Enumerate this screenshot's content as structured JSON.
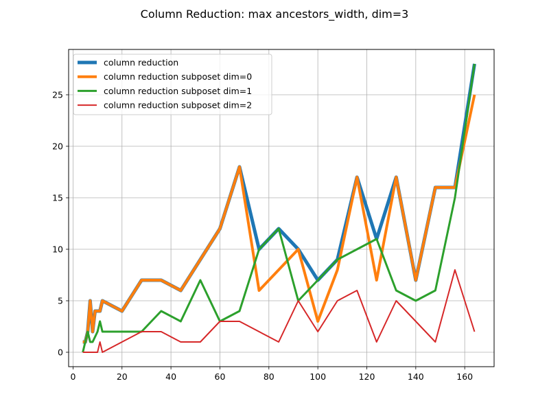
{
  "chart_data": {
    "type": "line",
    "title": "Column Reduction: max ancestors_width, dim=3",
    "xlabel": "",
    "ylabel": "",
    "xlim": [
      -1.8,
      172
    ],
    "ylim": [
      -1.4,
      29.4
    ],
    "xticks": [
      0,
      20,
      40,
      60,
      80,
      100,
      120,
      140,
      160
    ],
    "yticks": [
      0,
      5,
      10,
      15,
      20,
      25
    ],
    "grid": true,
    "legend_position": "top-left",
    "series": [
      {
        "name": "column reduction",
        "color": "#1f77b4",
        "width": 5,
        "x": [
          4,
          5,
          6,
          7,
          8,
          9,
          10,
          11,
          12,
          20,
          28,
          36,
          44,
          52,
          60,
          68,
          76,
          84,
          92,
          100,
          108,
          116,
          124,
          132,
          140,
          148,
          156,
          164
        ],
        "y": [
          1,
          1,
          2,
          5,
          2,
          4,
          4,
          4,
          5,
          4,
          7,
          7,
          6,
          9,
          12,
          18,
          10,
          12,
          10,
          7,
          9,
          17,
          11,
          17,
          7,
          16,
          16,
          28
        ]
      },
      {
        "name": "column reduction subposet dim=0",
        "color": "#ff7f0e",
        "width": 4,
        "x": [
          4,
          5,
          6,
          7,
          8,
          9,
          10,
          11,
          12,
          20,
          28,
          36,
          44,
          52,
          60,
          68,
          76,
          84,
          92,
          100,
          108,
          116,
          124,
          132,
          140,
          148,
          156,
          164
        ],
        "y": [
          1,
          1,
          2,
          5,
          2,
          4,
          4,
          4,
          5,
          4,
          7,
          7,
          6,
          9,
          12,
          18,
          6,
          8,
          10,
          3,
          8,
          17,
          7,
          17,
          7,
          16,
          16,
          25
        ]
      },
      {
        "name": "column reduction subposet dim=1",
        "color": "#2ca02c",
        "width": 3,
        "x": [
          4,
          6,
          7,
          8,
          10,
          11,
          12,
          20,
          28,
          36,
          44,
          52,
          60,
          68,
          76,
          84,
          92,
          100,
          108,
          116,
          124,
          132,
          140,
          148,
          156,
          164
        ],
        "y": [
          0,
          2,
          1,
          1,
          2,
          3,
          2,
          2,
          2,
          4,
          3,
          7,
          3,
          4,
          10,
          12,
          5,
          7,
          9,
          10,
          11,
          6,
          5,
          6,
          15,
          28
        ]
      },
      {
        "name": "column reduction subposet dim=2",
        "color": "#d62728",
        "width": 2,
        "x": [
          4,
          10,
          11,
          12,
          20,
          28,
          36,
          44,
          52,
          60,
          68,
          76,
          84,
          92,
          100,
          108,
          116,
          124,
          132,
          140,
          148,
          156,
          164
        ],
        "y": [
          0,
          0,
          1,
          0,
          1,
          2,
          2,
          1,
          1,
          3,
          3,
          2,
          1,
          5,
          2,
          5,
          6,
          1,
          5,
          3,
          1,
          8,
          2
        ]
      }
    ]
  }
}
